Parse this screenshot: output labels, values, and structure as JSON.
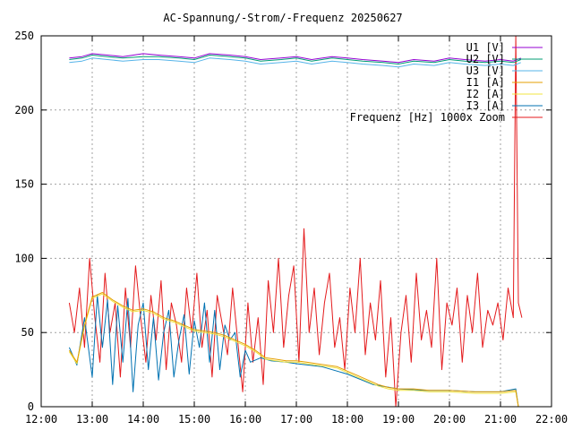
{
  "chart_data": {
    "type": "line",
    "title": "AC-Spannung/-Strom/-Frequenz 20250627",
    "xlabel": "",
    "ylabel": "",
    "xlim": [
      12,
      22
    ],
    "ylim": [
      0,
      250
    ],
    "x_ticks": [
      "12:00",
      "13:00",
      "14:00",
      "15:00",
      "16:00",
      "17:00",
      "18:00",
      "19:00",
      "20:00",
      "21:00",
      "22:00"
    ],
    "y_ticks": [
      "0",
      "50",
      "100",
      "150",
      "200",
      "250"
    ],
    "grid": true,
    "legend_position": "top-right",
    "series": [
      {
        "name": "U1 [V]",
        "color": "#9400d3",
        "x": [
          12.55,
          12.8,
          13.0,
          13.3,
          13.6,
          14.0,
          14.3,
          14.7,
          15.0,
          15.3,
          15.7,
          16.0,
          16.3,
          16.7,
          17.0,
          17.3,
          17.7,
          18.0,
          18.3,
          18.7,
          19.0,
          19.3,
          19.7,
          20.0,
          20.3,
          20.7,
          21.0,
          21.25,
          21.4
        ],
        "y": [
          235,
          236,
          238,
          237,
          236,
          238,
          237,
          236,
          235,
          238,
          237,
          236,
          234,
          235,
          236,
          234,
          236,
          235,
          234,
          233,
          232,
          234,
          233,
          235,
          234,
          233,
          234,
          233,
          235
        ]
      },
      {
        "name": "U2 [V]",
        "color": "#009e73",
        "x": [
          12.55,
          12.8,
          13.0,
          13.3,
          13.6,
          14.0,
          14.3,
          14.7,
          15.0,
          15.3,
          15.7,
          16.0,
          16.3,
          16.7,
          17.0,
          17.3,
          17.7,
          18.0,
          18.3,
          18.7,
          19.0,
          19.3,
          19.7,
          20.0,
          20.3,
          20.7,
          21.0,
          21.25,
          21.4
        ],
        "y": [
          234,
          235,
          237,
          236,
          235,
          236,
          236,
          235,
          234,
          237,
          236,
          235,
          233,
          234,
          235,
          233,
          235,
          234,
          233,
          232,
          231,
          233,
          232,
          234,
          233,
          232,
          233,
          232,
          234
        ]
      },
      {
        "name": "U3 [V]",
        "color": "#56b4e9",
        "x": [
          12.55,
          12.8,
          13.0,
          13.3,
          13.6,
          14.0,
          14.3,
          14.7,
          15.0,
          15.3,
          15.7,
          16.0,
          16.3,
          16.7,
          17.0,
          17.3,
          17.7,
          18.0,
          18.3,
          18.7,
          19.0,
          19.3,
          19.7,
          20.0,
          20.3,
          20.7,
          21.0,
          21.25,
          21.4
        ],
        "y": [
          232,
          233,
          235,
          234,
          233,
          234,
          234,
          233,
          232,
          235,
          234,
          233,
          231,
          232,
          233,
          231,
          233,
          232,
          231,
          230,
          229,
          231,
          230,
          232,
          231,
          230,
          231,
          230,
          232
        ]
      },
      {
        "name": "I1 [A]",
        "color": "#e69f00",
        "x": [
          12.55,
          12.7,
          12.85,
          13.0,
          13.2,
          13.4,
          13.6,
          13.8,
          14.0,
          14.2,
          14.4,
          14.6,
          14.8,
          15.0,
          15.2,
          15.4,
          15.6,
          15.8,
          16.0,
          16.2,
          16.4,
          16.6,
          16.8,
          17.0,
          17.2,
          17.4,
          17.6,
          17.8,
          18.0,
          18.2,
          18.4,
          18.6,
          18.8,
          19.0,
          19.3,
          19.6,
          20.0,
          20.5,
          21.0,
          21.3,
          21.35
        ],
        "y": [
          38,
          30,
          55,
          74,
          77,
          72,
          68,
          65,
          66,
          64,
          60,
          58,
          55,
          52,
          51,
          50,
          48,
          45,
          42,
          38,
          33,
          32,
          31,
          31,
          30,
          29,
          28,
          27,
          24,
          21,
          18,
          15,
          13,
          12,
          12,
          11,
          11,
          10,
          10,
          11,
          0
        ]
      },
      {
        "name": "I2 [A]",
        "color": "#f0e442",
        "x": [
          12.55,
          12.7,
          12.85,
          13.0,
          13.2,
          13.4,
          13.6,
          13.8,
          14.0,
          14.2,
          14.4,
          14.6,
          14.8,
          15.0,
          15.2,
          15.4,
          15.6,
          15.8,
          16.0,
          16.2,
          16.4,
          16.6,
          16.8,
          17.0,
          17.2,
          17.4,
          17.6,
          17.8,
          18.0,
          18.2,
          18.4,
          18.6,
          18.8,
          19.0,
          19.3,
          19.6,
          20.0,
          20.5,
          21.0,
          21.3,
          21.35
        ],
        "y": [
          37,
          29,
          54,
          73,
          76,
          71,
          67,
          64,
          65,
          63,
          59,
          57,
          54,
          51,
          50,
          49,
          47,
          44,
          41,
          37,
          32,
          31,
          30,
          30,
          29,
          28,
          27,
          26,
          23,
          20,
          17,
          14,
          12,
          11,
          11,
          10,
          10,
          9,
          9,
          10,
          0
        ]
      },
      {
        "name": "I3 [A]",
        "color": "#0072b2",
        "x": [
          12.55,
          12.7,
          12.85,
          13.0,
          13.1,
          13.2,
          13.3,
          13.4,
          13.5,
          13.6,
          13.7,
          13.8,
          13.9,
          14.0,
          14.1,
          14.2,
          14.3,
          14.4,
          14.5,
          14.6,
          14.7,
          14.8,
          14.9,
          15.0,
          15.1,
          15.2,
          15.3,
          15.4,
          15.5,
          15.6,
          15.7,
          15.8,
          15.9,
          16.0,
          16.1,
          16.3,
          16.5,
          16.8,
          17.0,
          17.5,
          18.0,
          18.5,
          19.0,
          19.5,
          20.0,
          20.5,
          21.0,
          21.3,
          21.35
        ],
        "y": [
          40,
          28,
          60,
          20,
          75,
          40,
          72,
          15,
          68,
          30,
          73,
          10,
          55,
          70,
          25,
          60,
          18,
          50,
          65,
          20,
          45,
          62,
          22,
          58,
          40,
          70,
          30,
          65,
          25,
          55,
          45,
          50,
          20,
          38,
          30,
          33,
          31,
          30,
          29,
          27,
          22,
          15,
          12,
          11,
          11,
          10,
          10,
          12,
          0
        ]
      },
      {
        "name": "Frequenz [Hz] 1000x Zoom",
        "color": "#e41a1c",
        "x": [
          12.55,
          12.65,
          12.75,
          12.85,
          12.95,
          13.05,
          13.15,
          13.25,
          13.35,
          13.45,
          13.55,
          13.65,
          13.75,
          13.85,
          13.95,
          14.05,
          14.15,
          14.25,
          14.35,
          14.45,
          14.55,
          14.65,
          14.75,
          14.85,
          14.95,
          15.05,
          15.15,
          15.25,
          15.35,
          15.45,
          15.55,
          15.65,
          15.75,
          15.85,
          15.95,
          16.05,
          16.15,
          16.25,
          16.35,
          16.45,
          16.55,
          16.65,
          16.75,
          16.85,
          16.95,
          17.05,
          17.15,
          17.25,
          17.35,
          17.45,
          17.55,
          17.65,
          17.75,
          17.85,
          17.95,
          18.05,
          18.15,
          18.25,
          18.35,
          18.45,
          18.55,
          18.65,
          18.75,
          18.85,
          18.95,
          19.05,
          19.15,
          19.25,
          19.35,
          19.45,
          19.55,
          19.65,
          19.75,
          19.85,
          19.95,
          20.05,
          20.15,
          20.25,
          20.35,
          20.45,
          20.55,
          20.65,
          20.75,
          20.85,
          20.95,
          21.05,
          21.15,
          21.25,
          21.3,
          21.35,
          21.42
        ],
        "y": [
          70,
          50,
          80,
          40,
          100,
          60,
          30,
          90,
          50,
          70,
          20,
          80,
          40,
          95,
          60,
          30,
          75,
          45,
          85,
          25,
          70,
          55,
          30,
          80,
          50,
          90,
          40,
          65,
          20,
          75,
          55,
          35,
          80,
          45,
          10,
          70,
          30,
          60,
          15,
          85,
          50,
          100,
          40,
          75,
          95,
          30,
          120,
          50,
          80,
          35,
          70,
          90,
          40,
          60,
          25,
          80,
          50,
          100,
          35,
          70,
          45,
          85,
          20,
          60,
          0,
          50,
          75,
          30,
          90,
          45,
          65,
          40,
          100,
          25,
          70,
          55,
          80,
          30,
          75,
          50,
          90,
          40,
          65,
          55,
          70,
          45,
          80,
          60,
          250,
          70,
          60
        ]
      }
    ]
  }
}
